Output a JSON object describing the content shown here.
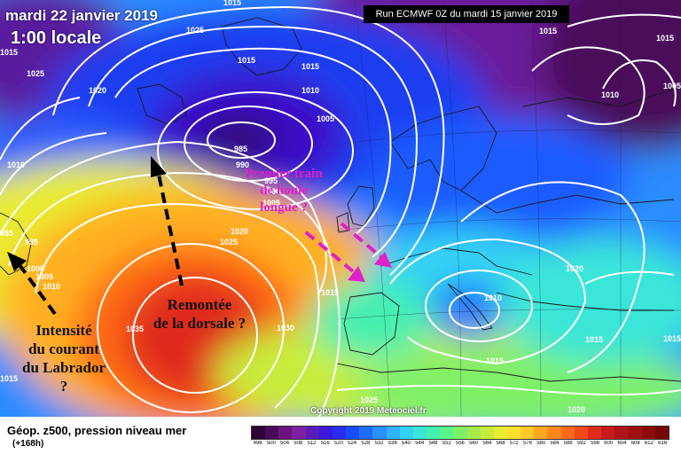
{
  "header": {
    "date": "mardi 22 janvier 2019",
    "time": "1:00 locale",
    "run": "Run ECMWF 0Z du mardi 15 janvier 2019"
  },
  "copyright": "Copyright 2019 Meteociel.fr",
  "annotations": {
    "labrador": [
      "Intensité",
      "du courant",
      "du Labrador",
      "?"
    ],
    "dorsale": [
      "Remontée",
      "de la dorsale ?"
    ],
    "houle": [
      "Premier train",
      "de houle",
      "longue ?"
    ]
  },
  "isobar_labels": [
    "1015",
    "1025",
    "1025",
    "1020",
    "1015",
    "1015",
    "1010",
    "1005",
    "985",
    "990",
    "995",
    "1000",
    "1005",
    "1020",
    "1025",
    "1010",
    "1015",
    "1015",
    "1030",
    "1035",
    "1000",
    "1005",
    "1010",
    "995",
    "985",
    "1010",
    "1015",
    "1020",
    "1015",
    "1025",
    "1020",
    "1015",
    "1005",
    "1010",
    "1015",
    "1015",
    "1015"
  ],
  "legend": {
    "title": "Géop. z500, pression niveau mer",
    "subtitle": "(+168h)",
    "ticks": [
      "496",
      "500",
      "504",
      "508",
      "512",
      "516",
      "520",
      "524",
      "528",
      "532",
      "536",
      "540",
      "544",
      "548",
      "552",
      "556",
      "560",
      "564",
      "568",
      "572",
      "576",
      "580",
      "584",
      "588",
      "592",
      "596",
      "600",
      "604",
      "608",
      "612",
      "616"
    ],
    "colors": [
      "#2e0236",
      "#4a0a5a",
      "#6a1480",
      "#7c1fa0",
      "#5a1cb8",
      "#3a1ad8",
      "#2a2cf0",
      "#1a4cff",
      "#1e6cff",
      "#2a90ff",
      "#30b4ff",
      "#34d2f4",
      "#3ae6d8",
      "#44f0b0",
      "#5af48c",
      "#7ef068",
      "#a4ec4c",
      "#c8ec3c",
      "#e8ec30",
      "#fce030",
      "#ffc828",
      "#ffa820",
      "#ff881c",
      "#ff6818",
      "#f04818",
      "#e02c1c",
      "#c81c1c",
      "#b01418",
      "#a01010",
      "#8c0c0c",
      "#760808"
    ]
  }
}
